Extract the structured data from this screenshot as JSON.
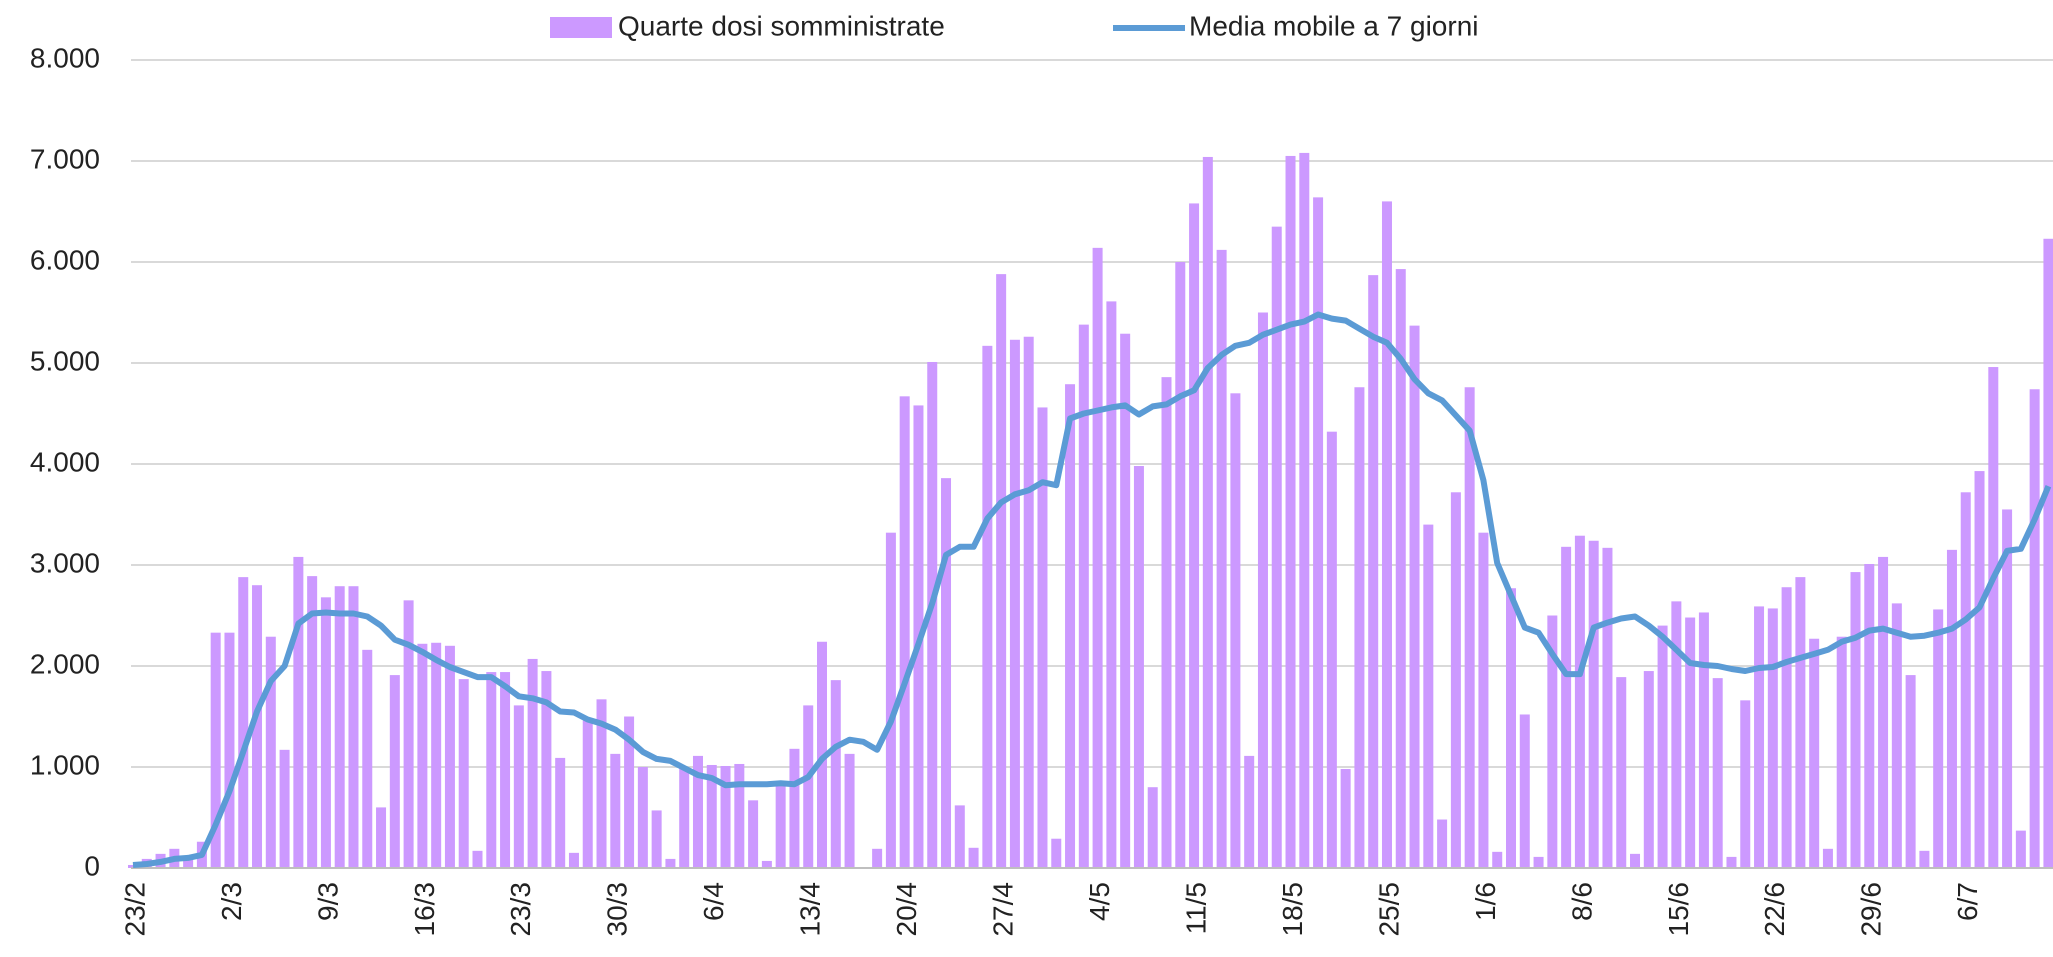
{
  "chart_data": {
    "type": "bar_line",
    "categories": [
      "23/2",
      null,
      null,
      null,
      null,
      null,
      null,
      "2/3",
      null,
      null,
      null,
      null,
      null,
      null,
      "9/3",
      null,
      null,
      null,
      null,
      null,
      null,
      "16/3",
      null,
      null,
      null,
      null,
      null,
      null,
      "23/3",
      null,
      null,
      null,
      null,
      null,
      null,
      "30/3",
      null,
      null,
      null,
      null,
      null,
      null,
      "6/4",
      null,
      null,
      null,
      null,
      null,
      null,
      "13/4",
      null,
      null,
      null,
      null,
      null,
      null,
      "20/4",
      null,
      null,
      null,
      null,
      null,
      null,
      "27/4",
      null,
      null,
      null,
      null,
      null,
      null,
      "4/5",
      null,
      null,
      null,
      null,
      null,
      null,
      "11/5",
      null,
      null,
      null,
      null,
      null,
      null,
      "18/5",
      null,
      null,
      null,
      null,
      null,
      null,
      "25/5",
      null,
      null,
      null,
      null,
      null,
      null,
      "1/6",
      null,
      null,
      null,
      null,
      null,
      null,
      "8/6",
      null,
      null,
      null,
      null,
      null,
      null,
      "15/6",
      null,
      null,
      null,
      null,
      null,
      null,
      "22/6",
      null,
      null,
      null,
      null,
      null,
      null,
      "29/6",
      null,
      null,
      null,
      null,
      null,
      null,
      "6/7",
      null,
      null,
      null,
      null,
      null,
      null
    ],
    "series": [
      {
        "name": "Quarte dosi somministrate",
        "kind": "bar",
        "color": "#cc99ff",
        "values": [
          30,
          90,
          140,
          190,
          110,
          260,
          2330,
          2330,
          2880,
          2800,
          2290,
          1170,
          3080,
          2890,
          2680,
          2790,
          2790,
          2160,
          600,
          1910,
          2650,
          2220,
          2230,
          2200,
          1870,
          170,
          1940,
          1940,
          1610,
          2070,
          1950,
          1090,
          150,
          1460,
          1670,
          1130,
          1500,
          1000,
          570,
          90,
          1000,
          1110,
          1020,
          1010,
          1030,
          670,
          70,
          830,
          1180,
          1610,
          2240,
          1860,
          1130,
          0,
          190,
          3320,
          4670,
          4580,
          5010,
          3860,
          620,
          200,
          5170,
          5880,
          5230,
          5260,
          4560,
          290,
          4790,
          5380,
          6140,
          5610,
          5290,
          3980,
          800,
          4860,
          6000,
          6580,
          7040,
          6120,
          4700,
          1110,
          5500,
          6350,
          7050,
          7080,
          6640,
          4320,
          980,
          4760,
          5870,
          6600,
          5930,
          5370,
          3400,
          480,
          3720,
          4760,
          3320,
          160,
          2770,
          1520,
          110,
          2500,
          3180,
          3290,
          3240,
          3170,
          1890,
          140,
          1950,
          2400,
          2640,
          2480,
          2530,
          1880,
          110,
          1660,
          2590,
          2570,
          2780,
          2880,
          2270,
          190,
          2290,
          2930,
          3010,
          3080,
          2620,
          1910,
          170,
          2560,
          3150,
          3720,
          3930,
          4960,
          3550,
          370,
          4740,
          6230
        ]
      },
      {
        "name": "Media mobile a 7 giorni",
        "kind": "line",
        "color": "#5b9bd5",
        "values": [
          30,
          40,
          60,
          90,
          100,
          130,
          430,
          760,
          1150,
          1550,
          1850,
          2000,
          2420,
          2520,
          2530,
          2520,
          2520,
          2490,
          2400,
          2260,
          2210,
          2140,
          2060,
          1990,
          1940,
          1890,
          1890,
          1800,
          1700,
          1680,
          1640,
          1550,
          1540,
          1470,
          1430,
          1370,
          1270,
          1150,
          1080,
          1060,
          990,
          920,
          890,
          820,
          830,
          830,
          830,
          840,
          830,
          900,
          1080,
          1200,
          1270,
          1250,
          1170,
          1450,
          1830,
          2220,
          2620,
          3100,
          3180,
          3180,
          3460,
          3620,
          3700,
          3740,
          3820,
          3790,
          4450,
          4500,
          4530,
          4560,
          4580,
          4490,
          4570,
          4590,
          4670,
          4730,
          4950,
          5080,
          5170,
          5200,
          5280,
          5330,
          5380,
          5410,
          5480,
          5440,
          5420,
          5340,
          5260,
          5200,
          5040,
          4840,
          4700,
          4630,
          4480,
          4330,
          3840,
          3020,
          2700,
          2380,
          2330,
          2120,
          1920,
          1920,
          2380,
          2430,
          2470,
          2490,
          2400,
          2290,
          2160,
          2030,
          2010,
          2000,
          1970,
          1950,
          1980,
          1990,
          2040,
          2080,
          2120,
          2160,
          2240,
          2280,
          2350,
          2370,
          2330,
          2290,
          2300,
          2330,
          2370,
          2460,
          2580,
          2870,
          3140,
          3160,
          3450,
          3780
        ]
      }
    ],
    "ylim": [
      0,
      8000
    ],
    "yticks": [
      0,
      {
        "value": 1000,
        "label": "1.000"
      },
      {
        "value": 2000,
        "label": "2.000"
      },
      {
        "value": 3000,
        "label": "3.000"
      },
      {
        "value": 4000,
        "label": "4.000"
      },
      {
        "value": 5000,
        "label": "5.000"
      },
      {
        "value": 6000,
        "label": "6.000"
      },
      {
        "value": 7000,
        "label": "7.000"
      },
      {
        "value": 8000,
        "label": "8.000"
      }
    ],
    "grid": true,
    "legend": "top"
  }
}
